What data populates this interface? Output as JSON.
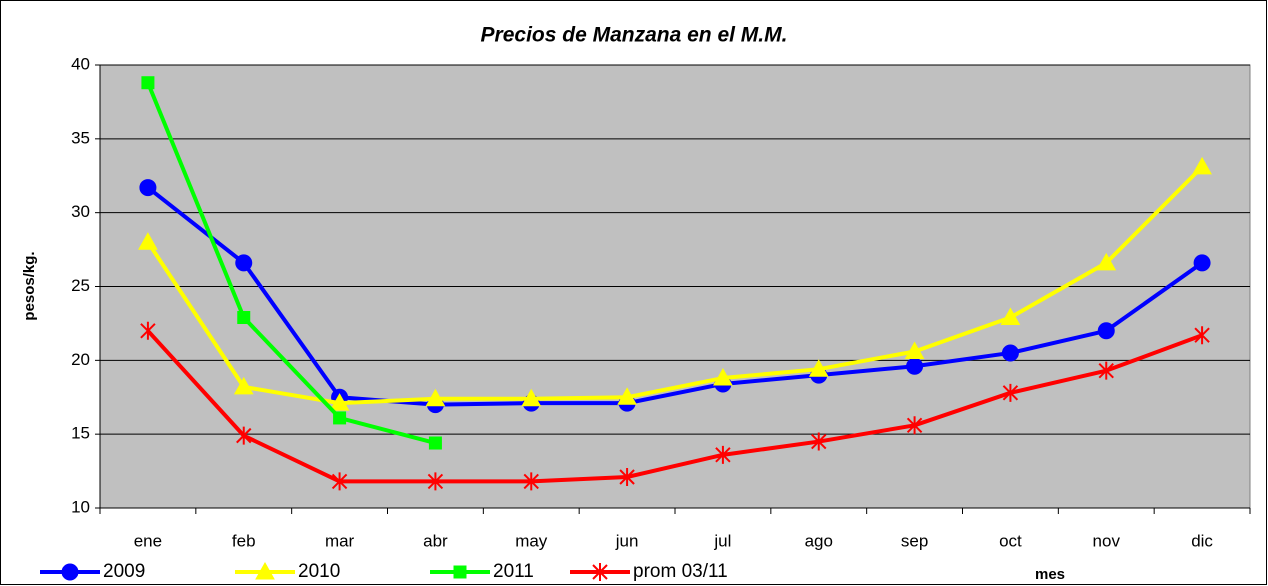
{
  "chart_data": {
    "type": "line",
    "title": "Precios de Manzana en el M.M.",
    "x_label": "mes",
    "y_label": "pesos/kg.",
    "categories": [
      "ene",
      "feb",
      "mar",
      "abr",
      "may",
      "jun",
      "jul",
      "ago",
      "sep",
      "oct",
      "nov",
      "dic"
    ],
    "series": [
      {
        "name": "2009",
        "color": "#0000ff",
        "marker": "circle",
        "values": [
          31.7,
          26.6,
          17.5,
          17.0,
          17.1,
          17.1,
          18.4,
          19.0,
          19.6,
          20.5,
          22.0,
          26.6
        ]
      },
      {
        "name": "2010",
        "color": "#ffff00",
        "marker": "triangle",
        "values": [
          28.0,
          18.2,
          17.1,
          17.4,
          17.4,
          17.5,
          18.8,
          19.4,
          20.6,
          22.9,
          26.6,
          33.1
        ]
      },
      {
        "name": "2011",
        "color": "#00ff00",
        "marker": "square",
        "values": [
          38.8,
          22.9,
          16.1,
          14.4,
          null,
          null,
          null,
          null,
          null,
          null,
          null,
          null
        ]
      },
      {
        "name": "prom 03/11",
        "color": "#ff0000",
        "marker": "asterisk",
        "values": [
          22.0,
          14.9,
          11.8,
          11.8,
          11.8,
          12.1,
          13.6,
          14.5,
          15.6,
          17.8,
          19.3,
          21.7
        ]
      }
    ],
    "ylim": [
      10,
      40
    ],
    "yticks": [
      10,
      15,
      20,
      25,
      30,
      35,
      40
    ],
    "grid": true,
    "legend": "bottom"
  }
}
